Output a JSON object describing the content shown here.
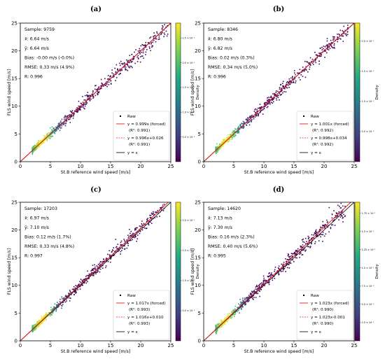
{
  "colors": {
    "identity": "#1a1a1a",
    "fit_forced": "#e31a1c",
    "fit_free": "#e31a1c",
    "raw_marker": "#000000",
    "colormap": "viridis"
  },
  "chart_data": [
    {
      "type": "scatter",
      "panel_label": "(a)",
      "xlabel": "St.B reference wind speed [m/s]",
      "ylabel": "FLS wind speed [m/s]",
      "xlim": [
        0,
        25
      ],
      "ylim": [
        0,
        25
      ],
      "xticks": [
        "0",
        "5",
        "10",
        "15",
        "20",
        "25"
      ],
      "yticks": [
        "0",
        "5",
        "10",
        "15",
        "20",
        "25"
      ],
      "colorbar": {
        "label": "Density",
        "ticks": [
          "5.0 × 10⁻²",
          "1.0 × 10⁻¹",
          "1.5 × 10⁻¹",
          "2.0 × 10⁻¹",
          "2.5 × 10⁻¹"
        ]
      },
      "stats": [
        "Sample: 9759",
        "x̄: 6.64 m/s",
        "ȳ: 6.64 m/s",
        "Bias: -0.00 m/s (-0.0%)",
        "RMSE: 0.33 m/s (4.9%)",
        "R: 0.996"
      ],
      "legend": [
        "Raw",
        "y = 0.999x (forced)",
        "(R²: 0.991)",
        "y = 0.996x+0.026",
        "(R²: 0.991)",
        "y = x"
      ],
      "forced_slope": 0.999,
      "free_slope": 0.996,
      "free_intercept": 0.026,
      "point_x_range": [
        2,
        24.5
      ],
      "point_noise": 0.33,
      "n_points": 9759,
      "series": [
        {
          "name": "Raw"
        },
        {
          "name": "y = 0.999x (forced)"
        },
        {
          "name": "y = 0.996x+0.026"
        },
        {
          "name": "y = x"
        }
      ],
      "grid": false,
      "legend_position": "lower-right"
    },
    {
      "type": "scatter",
      "panel_label": "(b)",
      "xlabel": "St.B reference wind speed [m/s]",
      "ylabel": "FLS wind speed [m/s]",
      "xlim": [
        0,
        25
      ],
      "ylim": [
        0,
        25
      ],
      "xticks": [
        "0",
        "5",
        "10",
        "15",
        "20",
        "25"
      ],
      "yticks": [
        "0",
        "5",
        "10",
        "15",
        "20",
        "25"
      ],
      "colorbar": {
        "label": "Density",
        "ticks": [
          "5.0 × 10⁻²",
          "1.0 × 10⁻¹",
          "1.5 × 10⁻¹",
          "2.0 × 10⁻¹"
        ]
      },
      "stats": [
        "Sample: 8346",
        "x̄: 6.80 m/s",
        "ȳ: 6.82 m/s",
        "Bias: 0.02 m/s (0.3%)",
        "RMSE: 0.34 m/s (5.0%)",
        "R: 0.996"
      ],
      "legend": [
        "Raw",
        "y = 1.001x (forced)",
        "(R²: 0.992)",
        "y = 0.998x+0.034",
        "(R²: 0.992)",
        "y = x"
      ],
      "forced_slope": 1.001,
      "free_slope": 0.998,
      "free_intercept": 0.034,
      "point_x_range": [
        2,
        24
      ],
      "point_noise": 0.34,
      "n_points": 8346,
      "series": [
        {
          "name": "Raw"
        },
        {
          "name": "y = 1.001x (forced)"
        },
        {
          "name": "y = 0.998x+0.034"
        },
        {
          "name": "y = x"
        }
      ],
      "grid": false,
      "legend_position": "lower-right"
    },
    {
      "type": "scatter",
      "panel_label": "(c)",
      "xlabel": "St.B reference wind speed [m/s]",
      "ylabel": "FLS wind speed [m/s]",
      "xlim": [
        0,
        25
      ],
      "ylim": [
        0,
        25
      ],
      "xticks": [
        "0",
        "5",
        "10",
        "15",
        "20",
        "25"
      ],
      "yticks": [
        "0",
        "5",
        "10",
        "15",
        "20",
        "25"
      ],
      "colorbar": {
        "label": "Density",
        "ticks": [
          "5.0 × 10⁻²",
          "1.0 × 10⁻¹",
          "1.5 × 10⁻¹",
          "2.0 × 10⁻¹"
        ]
      },
      "stats": [
        "Sample: 17203",
        "x̄: 6.97 m/s",
        "ȳ: 7.10 m/s",
        "Bias: 0.12 m/s (1.7%)",
        "RMSE: 0.33 m/s (4.8%)",
        "R: 0.997"
      ],
      "legend": [
        "Raw",
        "y = 1.017x (forced)",
        "(R²: 0.993)",
        "y = 1.016x+0.010",
        "(R²: 0.993)",
        "y = x"
      ],
      "forced_slope": 1.017,
      "free_slope": 1.016,
      "free_intercept": 0.01,
      "point_x_range": [
        2,
        24
      ],
      "point_noise": 0.33,
      "n_points": 17203,
      "series": [
        {
          "name": "Raw"
        },
        {
          "name": "y = 1.017x (forced)"
        },
        {
          "name": "y = 1.016x+0.010"
        },
        {
          "name": "y = x"
        }
      ],
      "grid": false,
      "legend_position": "lower-right"
    },
    {
      "type": "scatter",
      "panel_label": "(d)",
      "xlabel": "St.B reference wind speed [m/s]",
      "ylabel": "FLS wind speed [m/s]",
      "xlim": [
        0,
        25
      ],
      "ylim": [
        0,
        25
      ],
      "xticks": [
        "0",
        "5",
        "10",
        "15",
        "20",
        "25"
      ],
      "yticks": [
        "0",
        "5",
        "10",
        "15",
        "20",
        "25"
      ],
      "colorbar": {
        "label": "Density",
        "ticks": [
          "2.5 × 10⁻²",
          "5.0 × 10⁻²",
          "7.5 × 10⁻²",
          "1.0 × 10⁻¹",
          "1.25 × 10⁻¹",
          "1.5 × 10⁻¹",
          "1.75 × 10⁻¹"
        ]
      },
      "stats": [
        "Sample: 14620",
        "x̄: 7.13 m/s",
        "ȳ: 7.30 m/s",
        "Bias: 0.16 m/s (2.3%)",
        "RMSE: 0.40 m/s (5.6%)",
        "R: 0.995"
      ],
      "legend": [
        "Raw",
        "y = 1.023x (forced)",
        "(R²: 0.990)",
        "y = 1.023x-0.001",
        "(R²: 0.990)",
        "y = x"
      ],
      "forced_slope": 1.023,
      "free_slope": 1.023,
      "free_intercept": -0.001,
      "point_x_range": [
        2,
        23.5
      ],
      "point_noise": 0.4,
      "n_points": 14620,
      "series": [
        {
          "name": "Raw"
        },
        {
          "name": "y = 1.023x (forced)"
        },
        {
          "name": "y = 1.023x-0.001"
        },
        {
          "name": "y = x"
        }
      ],
      "grid": false,
      "legend_position": "lower-right"
    }
  ]
}
